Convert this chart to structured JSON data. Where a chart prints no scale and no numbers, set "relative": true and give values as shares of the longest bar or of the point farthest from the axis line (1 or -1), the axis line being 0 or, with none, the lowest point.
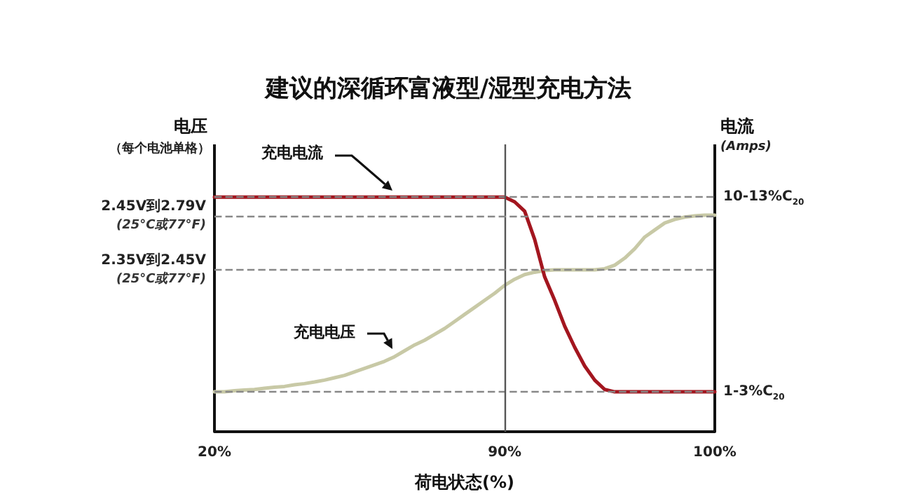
{
  "chart_data": {
    "type": "line",
    "title": "建议的深循环富液型/湿型充电方法",
    "xlabel": "荷电状态(%)",
    "ylabel": "电压",
    "y2label": "电流",
    "annotations": [
      "（每个电池单格）",
      "(Amps)"
    ],
    "relative": true,
    "legend": false,
    "grid": false,
    "marker": "none",
    "line_style": "solid",
    "categories": [
      "20%",
      null,
      null,
      null,
      null,
      null,
      null,
      null,
      null,
      null,
      null,
      null,
      null,
      null,
      null,
      null,
      null,
      null,
      null,
      null,
      null,
      null,
      null,
      null,
      null,
      null,
      null,
      null,
      null,
      "90%",
      null,
      null,
      null,
      null,
      null,
      null,
      null,
      null,
      null,
      null,
      null,
      null,
      null,
      null,
      null,
      null,
      null,
      null,
      null,
      null,
      "100%"
    ],
    "series": [
      {
        "name": "充电电流",
        "color": "#a3161f",
        "axis": "y2",
        "values": [
          1,
          1,
          1,
          1,
          1,
          1,
          1,
          1,
          1,
          1,
          1,
          1,
          1,
          1,
          1,
          1,
          1,
          1,
          1,
          1,
          1,
          1,
          1,
          1,
          1,
          1,
          1,
          1,
          1,
          1,
          0.98,
          0.94,
          0.82,
          0.66,
          0.56,
          0.45,
          0.36,
          0.28,
          0.22,
          0.18,
          0.17,
          0.17,
          0.17,
          0.17,
          0.17,
          0.17,
          0.17,
          0.17,
          0.17,
          0.17,
          0.17
        ]
      },
      {
        "name": "充电电压",
        "color": "#c8c9a6",
        "values": [
          0.17,
          0.17,
          0.175,
          0.178,
          0.18,
          0.185,
          0.19,
          0.193,
          0.2,
          0.205,
          0.212,
          0.22,
          0.23,
          0.24,
          0.255,
          0.27,
          0.285,
          0.3,
          0.32,
          0.345,
          0.37,
          0.39,
          0.415,
          0.44,
          0.47,
          0.5,
          0.53,
          0.56,
          0.59,
          0.624,
          0.65,
          0.67,
          0.68,
          0.687,
          0.69,
          0.69,
          0.69,
          0.69,
          0.69,
          0.695,
          0.71,
          0.74,
          0.78,
          0.83,
          0.86,
          0.89,
          0.905,
          0.915,
          0.92,
          0.923,
          0.923
        ]
      }
    ],
    "ref_lines": [
      {
        "axis": "x",
        "value": "90%",
        "color": "#555555",
        "line_style": "solid"
      },
      {
        "axis": "y",
        "value": 0.92,
        "label": "2.45V到2.79V\n(25°C或77°F)",
        "color": "#888888",
        "line_style": "dashed"
      },
      {
        "axis": "y",
        "value": 0.69,
        "label": "2.35V到2.45V\n(25°C或77°F)",
        "color": "#888888",
        "line_style": "dashed"
      },
      {
        "axis": "y2",
        "value": 1,
        "label": "10-13%C$_{20}$",
        "color": "#888888",
        "line_style": "dashed"
      },
      {
        "axis": "y2",
        "value": 0.17,
        "label": "1-3%C$_{20}$",
        "color": "#888888",
        "line_style": "dashed"
      }
    ]
  }
}
